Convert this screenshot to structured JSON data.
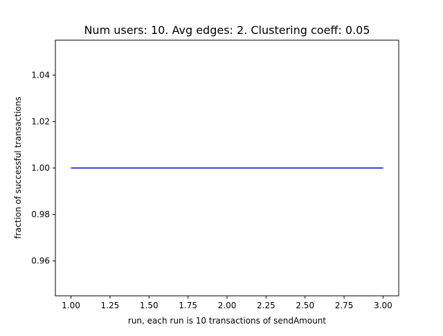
{
  "chart_data": {
    "type": "line",
    "title": "Num users: 10. Avg edges: 2. Clustering coeff: 0.05",
    "xlabel": "run, each run is 10 transactions of sendAmount",
    "ylabel": "fraction of successful transactions",
    "xlim": [
      0.9,
      3.1
    ],
    "ylim": [
      0.945,
      1.055
    ],
    "xticks": [
      "1.00",
      "1.25",
      "1.50",
      "1.75",
      "2.00",
      "2.25",
      "2.50",
      "2.75",
      "3.00"
    ],
    "yticks": [
      "0.96",
      "0.98",
      "1.00",
      "1.02",
      "1.04"
    ],
    "grid": false,
    "series": [
      {
        "color": "#0000cc",
        "x": [
          1,
          2,
          3
        ],
        "y": [
          1.0,
          1.0,
          1.0
        ]
      }
    ]
  }
}
